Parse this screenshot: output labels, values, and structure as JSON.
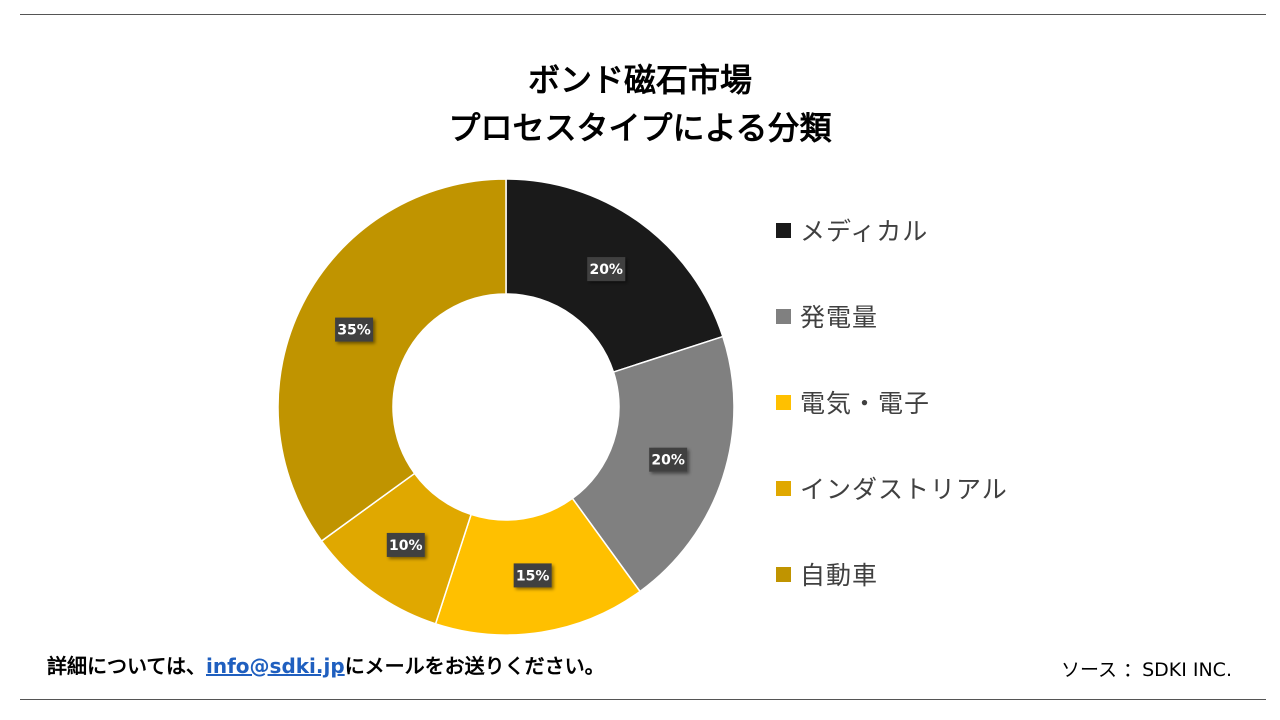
{
  "chart_data": {
    "type": "pie",
    "title": [
      "ボンド磁石市場",
      "プロセスタイプによる分類"
    ],
    "categories": [
      "メディカル",
      "発電量",
      "電気・電子",
      "インダストリアル",
      "自動車"
    ],
    "values": [
      20,
      20,
      15,
      10,
      35
    ],
    "data_labels": [
      "20%",
      "20%",
      "15%",
      "10%",
      "35%"
    ],
    "colors": [
      "#1a1a1a",
      "#808080",
      "#ffc000",
      "#e0a800",
      "#c09400"
    ],
    "legend_position": "right",
    "donut": true
  },
  "footer": {
    "prefix": "詳細については、",
    "email": "info@sdki.jp",
    "suffix": "にメールをお送りください。",
    "source": "ソース ：SDKI INC."
  }
}
